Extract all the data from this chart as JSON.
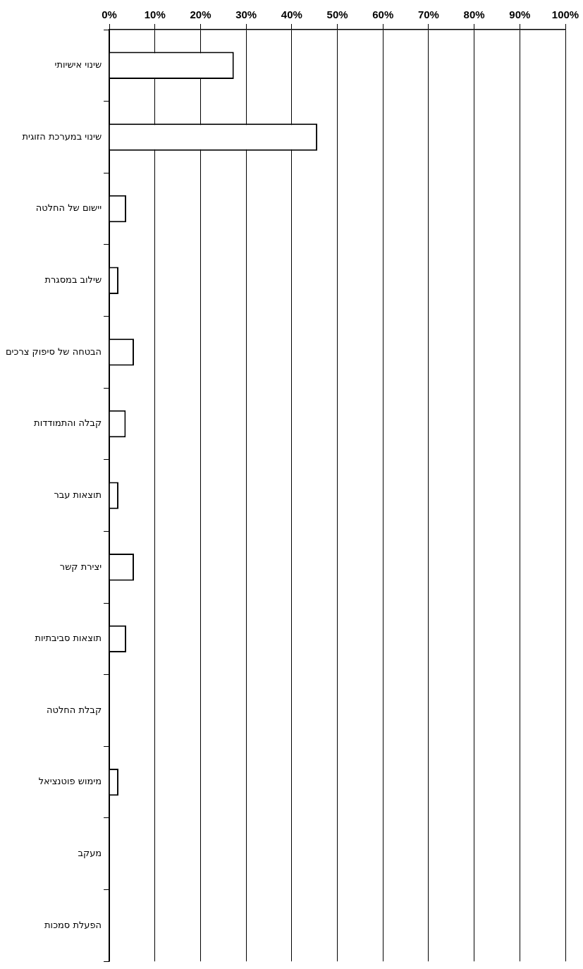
{
  "chart_data": {
    "type": "bar",
    "orientation": "horizontal",
    "categories": [
      "שינוי אישיותי",
      "שינוי במערכת הזוגית",
      "יישום של החלטה",
      "שילוב במסגרת",
      "הבטחה של סיפוק צרכים",
      "קבלה והתמודדות",
      "תוצאות עבר",
      "יצירת קשר",
      "תוצאות סביבתיות",
      "קבלת החלטה",
      "מימוש פוטנציאל",
      "מעקב",
      "הפעלת סמכות"
    ],
    "values": [
      27.3,
      45.6,
      3.7,
      2,
      5.4,
      3.6,
      2,
      5.4,
      3.7,
      0,
      2,
      0,
      0
    ],
    "color": "#ffffff",
    "xlim": [
      0,
      100
    ],
    "xticks": [
      {
        "value": 0,
        "label": "0%"
      },
      {
        "value": 10,
        "label": "10%"
      },
      {
        "value": 20,
        "label": "20%"
      },
      {
        "value": 30,
        "label": "30%"
      },
      {
        "value": 40,
        "label": "40%"
      },
      {
        "value": 50,
        "label": "50%"
      },
      {
        "value": 60,
        "label": "60%"
      },
      {
        "value": 70,
        "label": "70%"
      },
      {
        "value": 80,
        "label": "80%"
      },
      {
        "value": 90,
        "label": "90%"
      },
      {
        "value": 100,
        "label": "100%"
      }
    ],
    "grid": "x",
    "legend": false
  }
}
